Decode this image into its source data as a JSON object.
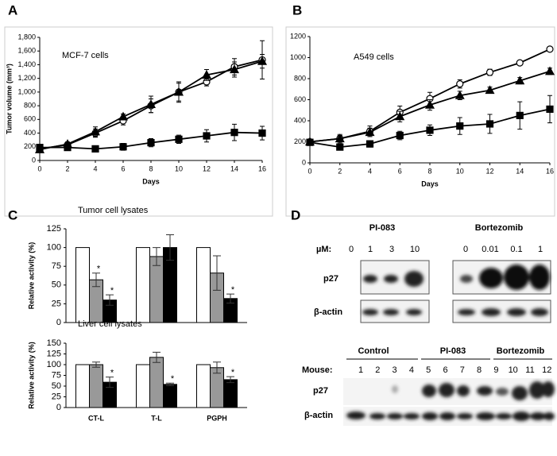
{
  "chart_data": [
    {
      "type": "line",
      "panel": "A",
      "annotation": "MCF-7 cells",
      "y_label": "Tumor volume (mm³)",
      "x_label": "Days",
      "x": [
        0,
        2,
        4,
        6,
        8,
        10,
        12,
        14,
        16
      ],
      "xlim": [
        0,
        16
      ],
      "xticks": [
        0,
        2,
        4,
        6,
        8,
        10,
        12,
        14,
        16
      ],
      "ylim": [
        0,
        1800
      ],
      "yticks": [
        0,
        200,
        400,
        600,
        800,
        {
          "value": 1000,
          "label": "1,000"
        },
        {
          "value": 1200,
          "label": "1,200"
        },
        {
          "value": 1400,
          "label": "1,400"
        },
        {
          "value": 1600,
          "label": "1,600"
        },
        {
          "value": 1800,
          "label": "1,800"
        }
      ],
      "series": [
        {
          "color": "#000000",
          "marker": "circle",
          "fill": "#ffffff",
          "values": [
            170,
            230,
            400,
            580,
            800,
            1000,
            1150,
            1370,
            1470
          ],
          "errors": [
            20,
            30,
            60,
            60,
            100,
            150,
            60,
            120,
            280
          ]
        },
        {
          "color": "#000000",
          "marker": "triangle",
          "fill": "#000000",
          "values": [
            160,
            240,
            420,
            640,
            820,
            1000,
            1250,
            1330,
            1450
          ],
          "errors": [
            20,
            30,
            70,
            40,
            120,
            130,
            80,
            110,
            100
          ]
        },
        {
          "color": "#000000",
          "marker": "square",
          "fill": "#000000",
          "values": [
            190,
            190,
            170,
            200,
            260,
            310,
            360,
            410,
            400
          ],
          "errors": [
            40,
            40,
            30,
            50,
            60,
            60,
            90,
            120,
            100
          ]
        }
      ]
    },
    {
      "type": "line",
      "panel": "B",
      "annotation": "A549 cells",
      "x_label": "Days",
      "x": [
        0,
        2,
        4,
        6,
        8,
        10,
        12,
        14,
        16
      ],
      "xlim": [
        0,
        16
      ],
      "xticks": [
        0,
        2,
        4,
        6,
        8,
        10,
        12,
        14,
        16
      ],
      "ylim": [
        0,
        1200
      ],
      "yticks": [
        0,
        200,
        400,
        600,
        800,
        1000,
        1200
      ],
      "series": [
        {
          "color": "#000000",
          "marker": "circle",
          "fill": "#ffffff",
          "values": [
            200,
            230,
            300,
            480,
            610,
            750,
            860,
            950,
            1080
          ],
          "errors": [
            20,
            40,
            50,
            60,
            60,
            40,
            30,
            20,
            20
          ]
        },
        {
          "color": "#000000",
          "marker": "triangle",
          "fill": "#000000",
          "values": [
            200,
            230,
            290,
            440,
            550,
            640,
            690,
            780,
            870
          ],
          "errors": [
            20,
            30,
            40,
            50,
            50,
            40,
            30,
            30,
            30
          ]
        },
        {
          "color": "#000000",
          "marker": "square",
          "fill": "#000000",
          "values": [
            195,
            150,
            180,
            260,
            310,
            350,
            370,
            450,
            510
          ],
          "errors": [
            20,
            20,
            30,
            40,
            50,
            80,
            90,
            130,
            130
          ]
        }
      ]
    },
    {
      "type": "bar",
      "panel": "C",
      "annotation": "Tumor cell lysates",
      "y_label": "Relative activity (%)",
      "categories": [
        null,
        null,
        null
      ],
      "ylim": [
        0,
        125
      ],
      "yticks": [
        0,
        25,
        50,
        75,
        100,
        125
      ],
      "series": [
        {
          "color": "#ffffff",
          "values": [
            100,
            100,
            100
          ],
          "errors": [
            null,
            null,
            null
          ],
          "marks": [
            null,
            null,
            null
          ]
        },
        {
          "color": "#999999",
          "values": [
            57,
            88,
            66
          ],
          "errors": [
            9,
            12,
            23
          ],
          "marks": [
            "*",
            null,
            null
          ]
        },
        {
          "color": "#000000",
          "values": [
            30,
            100,
            32
          ],
          "errors": [
            7,
            17,
            6
          ],
          "marks": [
            "*",
            null,
            "*"
          ]
        }
      ]
    },
    {
      "type": "bar",
      "annotation": "Liver cell lysates",
      "y_label": "Relative activity (%)",
      "categories": [
        "CT-L",
        "T-L",
        "PGPH"
      ],
      "ylim": [
        0,
        150
      ],
      "yticks": [
        0,
        25,
        50,
        75,
        100,
        125,
        150
      ],
      "series": [
        {
          "color": "#ffffff",
          "values": [
            100,
            100,
            100
          ],
          "errors": [
            null,
            null,
            null
          ],
          "marks": [
            null,
            null,
            null
          ]
        },
        {
          "color": "#999999",
          "values": [
            100,
            117,
            93
          ],
          "errors": [
            6,
            12,
            13
          ],
          "marks": [
            null,
            null,
            null
          ]
        },
        {
          "color": "#000000",
          "values": [
            59,
            54,
            65
          ],
          "errors": [
            12,
            3,
            7
          ],
          "marks": [
            "*",
            "*",
            "*"
          ]
        }
      ]
    }
  ],
  "blots": {
    "panel": "D",
    "upper": {
      "groups": [
        "PI-083",
        "Bortezomib"
      ],
      "dose_label": "µM:",
      "doses": [
        "0",
        "1",
        "3",
        "10",
        "0",
        "0.01",
        "0.1",
        "1"
      ],
      "rows": [
        "p27",
        "β-actin"
      ]
    },
    "lower": {
      "groups": [
        "Control",
        "PI-083",
        "Bortezomib"
      ],
      "mouse_label": "Mouse:",
      "mice": [
        "1",
        "2",
        "3",
        "4",
        "5",
        "6",
        "7",
        "8",
        "9",
        "10",
        "11",
        "12"
      ],
      "rows": [
        "p27",
        "β-actin"
      ]
    }
  }
}
